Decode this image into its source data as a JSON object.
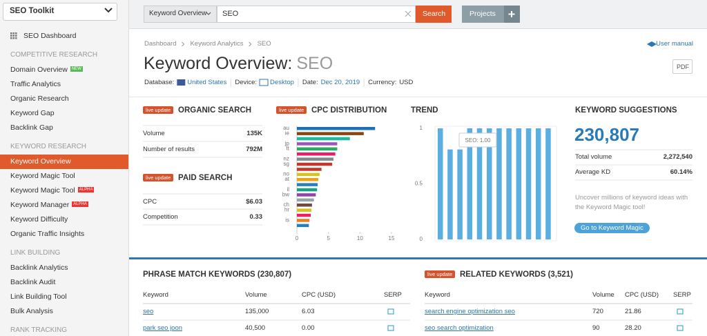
{
  "sidebar": {
    "toolkit": "SEO Toolkit",
    "dashboard": "SEO Dashboard",
    "sections": [
      {
        "title": "COMPETITIVE RESEARCH",
        "items": [
          {
            "label": "Domain Overview",
            "badge": "NEW"
          },
          {
            "label": "Traffic Analytics"
          },
          {
            "label": "Organic Research"
          },
          {
            "label": "Keyword Gap"
          },
          {
            "label": "Backlink Gap"
          }
        ]
      },
      {
        "title": "KEYWORD RESEARCH",
        "items": [
          {
            "label": "Keyword Overview",
            "active": true
          },
          {
            "label": "Keyword Magic Tool"
          },
          {
            "label": "Keyword Magic Tool",
            "badge": "ALPHA"
          },
          {
            "label": "Keyword Manager",
            "badge": "ALPHA"
          },
          {
            "label": "Keyword Difficulty"
          },
          {
            "label": "Organic Traffic Insights"
          }
        ]
      },
      {
        "title": "LINK BUILDING",
        "items": [
          {
            "label": "Backlink Analytics"
          },
          {
            "label": "Backlink Audit"
          },
          {
            "label": "Link Building Tool"
          },
          {
            "label": "Bulk Analysis"
          }
        ]
      },
      {
        "title": "RANK TRACKING",
        "items": []
      }
    ]
  },
  "search": {
    "dropdown": "Keyword Overview",
    "query": "SEO",
    "button": "Search",
    "projects": "Projects"
  },
  "breadcrumb": [
    "Dashboard",
    "Keyword Analytics",
    "SEO"
  ],
  "user_manual": "User manual",
  "title": "Keyword Overview:",
  "title_keyword": "SEO",
  "pdf": "PDF",
  "filters": [
    {
      "label": "Database:",
      "value": "United States"
    },
    {
      "label": "Device:",
      "value": "Desktop"
    },
    {
      "label": "Date:",
      "value": "Dec 20, 2019"
    },
    {
      "label": "Currency:",
      "value": "USD"
    }
  ],
  "organic": {
    "badge": "live update",
    "title": "ORGANIC SEARCH",
    "rows": [
      [
        "Volume",
        "135K"
      ],
      [
        "Number of results",
        "792M"
      ]
    ]
  },
  "paid": {
    "badge": "live update",
    "title": "PAID SEARCH",
    "rows": [
      [
        "CPC",
        "$6.03"
      ],
      [
        "Competition",
        "0.33"
      ]
    ]
  },
  "cpc_chart": {
    "type": "bar",
    "badge": "live update",
    "title": "CPC DISTRIBUTION",
    "categories": [
      "au",
      "ie",
      null,
      "jp",
      "tt",
      null,
      "nz",
      "sg",
      null,
      "no",
      "at",
      null,
      "il",
      "bw",
      null,
      "ch",
      "hr",
      null,
      "is",
      null
    ],
    "values": [
      12.4,
      10.6,
      8.4,
      6.4,
      6.4,
      6.1,
      5.8,
      5.6,
      3.9,
      3.6,
      3.4,
      3.3,
      3.2,
      3.0,
      2.7,
      2.4,
      2.3,
      2.2,
      2.0,
      1.9
    ],
    "colors": [
      "#1f6fb5",
      "#8b4513",
      "#1abc9c",
      "#9b59b6",
      "#27ae60",
      "#e91e63",
      "#7f8c8d",
      "#c0392b",
      "#c0392b",
      "#d4c31a",
      "#e8a317",
      "#2980b9",
      "#16a085",
      "#8e44ad",
      "#95a5a6",
      "#6d4c41",
      "#d4c31a",
      "#e91e63",
      "#e67e22",
      "#2980b9"
    ],
    "xlim": [
      0,
      15
    ],
    "xticks": [
      0,
      5,
      10,
      15
    ]
  },
  "trend": {
    "type": "bar",
    "title": "TREND",
    "values": [
      1,
      0.81,
      0.81,
      1,
      1,
      1,
      1,
      1,
      1,
      1,
      1,
      1
    ],
    "color": "#5aaee0",
    "ylim": [
      0,
      1
    ],
    "yticks": [
      1,
      0.5,
      0
    ],
    "tooltip": "SEO: 1.00"
  },
  "suggestions": {
    "title": "KEYWORD SUGGESTIONS",
    "total": "230,807",
    "rows": [
      [
        "Total volume",
        "2,272,540"
      ],
      [
        "Average KD",
        "60.14%"
      ]
    ],
    "text": [
      "Uncover millions of keyword ideas with",
      "the Keyword Magic tool!"
    ],
    "button": "Go to Keyword Magic"
  },
  "phrase": {
    "title": "PHRASE MATCH KEYWORDS (230,807)",
    "columns": [
      "Keyword",
      "Volume",
      "CPC (USD)",
      "SERP"
    ],
    "rows": [
      [
        "seo",
        "135,000",
        "6.03"
      ],
      [
        "park seo joon",
        "40,500",
        "0.00"
      ]
    ]
  },
  "related": {
    "badge": "live update",
    "title": "RELATED KEYWORDS (3,521)",
    "columns": [
      "Keyword",
      "Volume",
      "CPC (USD)",
      "SERP"
    ],
    "rows": [
      [
        "search engine optimization seo",
        "720",
        "21.86"
      ],
      [
        "seo search optimization",
        "90",
        "28.20"
      ]
    ]
  }
}
